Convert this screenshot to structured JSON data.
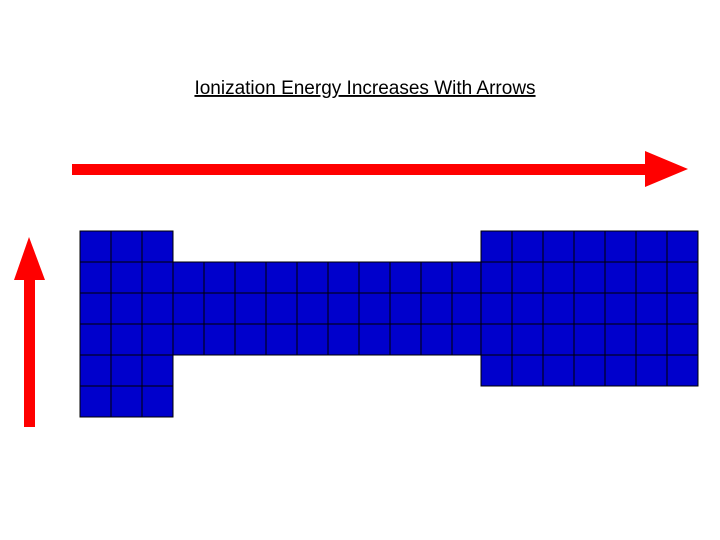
{
  "header": {
    "title": "Ionization Energy Increases With Arrows"
  }
}
